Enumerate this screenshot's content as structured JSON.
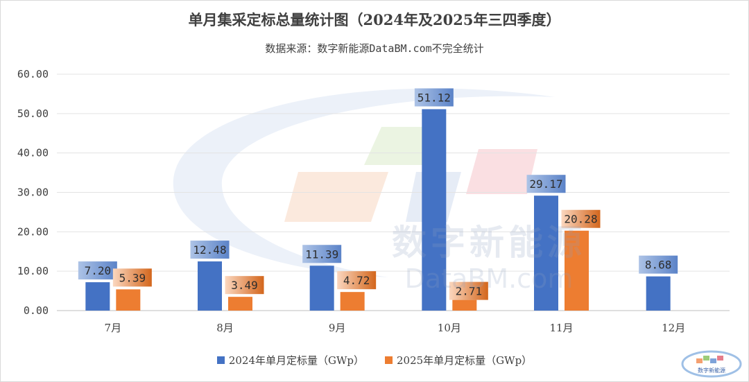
{
  "chart_data": {
    "type": "bar",
    "title": "单月集采定标总量统计图（2024年及2025年三四季度）",
    "subtitle": "数据来源：数字新能源DataBM.com不完全统计",
    "categories": [
      "7月",
      "8月",
      "9月",
      "10月",
      "11月",
      "12月"
    ],
    "series": [
      {
        "name": "2024年单月定标量（GWp）",
        "color": "#4472c4",
        "values": [
          7.2,
          12.48,
          11.39,
          51.12,
          29.17,
          8.68
        ]
      },
      {
        "name": "2025年单月定标量（GWp）",
        "color": "#ed7d31",
        "values": [
          5.39,
          3.49,
          4.72,
          2.71,
          20.28,
          null
        ]
      }
    ],
    "data_labels": [
      [
        "7.20",
        "12.48",
        "11.39",
        "51.12",
        "29.17",
        "8.68"
      ],
      [
        "5.39",
        "3.49",
        "4.72",
        "2.71",
        "20.28",
        ""
      ]
    ],
    "ylim": [
      0,
      60
    ],
    "yticks": [
      0,
      10,
      20,
      30,
      40,
      50,
      60
    ],
    "ytick_labels": [
      "0.00",
      "10.00",
      "20.00",
      "30.00",
      "40.00",
      "50.00",
      "60.00"
    ],
    "grid": true,
    "legend_position": "bottom"
  },
  "watermark": {
    "text": "数字新能源",
    "sub": "DataBM.com"
  },
  "corner_logo": {
    "text": "数字新能源"
  }
}
